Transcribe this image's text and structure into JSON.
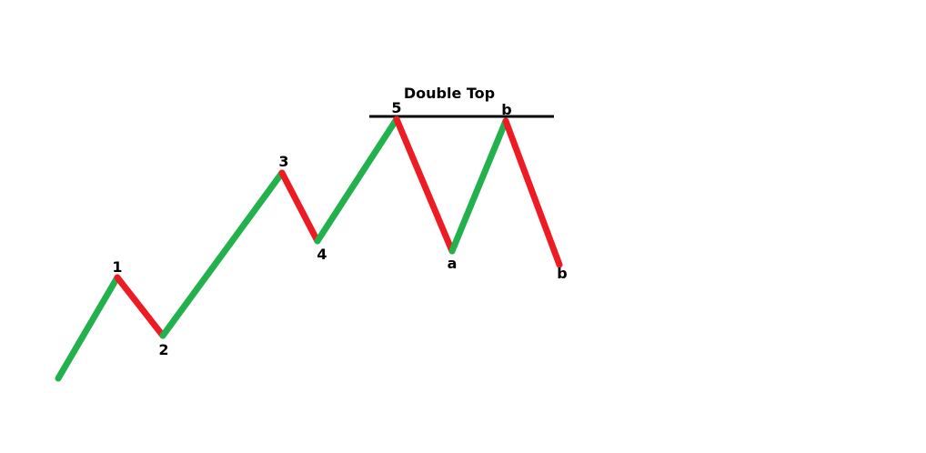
{
  "diagram": {
    "title": "Double Top",
    "colors": {
      "up": "#22b14c",
      "down": "#ed1c24",
      "resistance": "#000000",
      "text": "#000000",
      "background": "#ffffff"
    },
    "points": [
      {
        "id": "start",
        "label": ""
      },
      {
        "id": "p1",
        "label": "1"
      },
      {
        "id": "p2",
        "label": "2"
      },
      {
        "id": "p3",
        "label": "3"
      },
      {
        "id": "p4",
        "label": "4"
      },
      {
        "id": "p5",
        "label": "5"
      },
      {
        "id": "pa",
        "label": "a"
      },
      {
        "id": "pb_top",
        "label": "b"
      },
      {
        "id": "pb_end",
        "label": "b"
      }
    ],
    "segments": [
      {
        "from": "start",
        "to": "p1",
        "direction": "up"
      },
      {
        "from": "p1",
        "to": "p2",
        "direction": "down"
      },
      {
        "from": "p2",
        "to": "p3",
        "direction": "up"
      },
      {
        "from": "p3",
        "to": "p4",
        "direction": "down"
      },
      {
        "from": "p4",
        "to": "p5",
        "direction": "up"
      },
      {
        "from": "p5",
        "to": "pa",
        "direction": "down"
      },
      {
        "from": "pa",
        "to": "pb_top",
        "direction": "up"
      },
      {
        "from": "pb_top",
        "to": "pb_end",
        "direction": "down"
      }
    ]
  }
}
